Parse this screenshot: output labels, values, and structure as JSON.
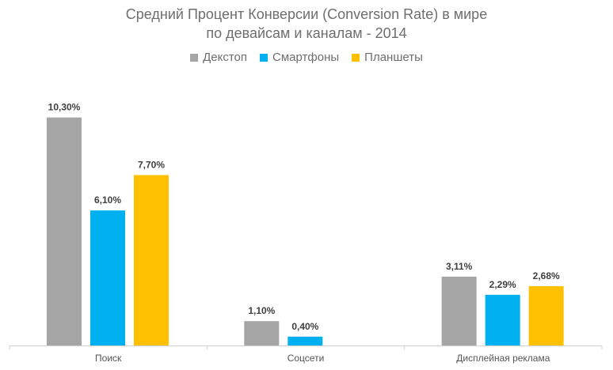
{
  "chart_data": {
    "type": "bar",
    "title_lines": [
      "Средний Процент Конверсии (Conversion Rate) в мире",
      "по девайсам и каналам - 2014"
    ],
    "categories": [
      "Поиск",
      "Соцсети",
      "Дисплейная реклама"
    ],
    "series": [
      {
        "name": "Декстоп",
        "color": "#a5a5a5",
        "values": [
          10.3,
          1.1,
          3.11
        ],
        "labels": [
          "10,30%",
          "1,10%",
          "3,11%"
        ]
      },
      {
        "name": "Смартфоны",
        "color": "#00b0f0",
        "values": [
          6.1,
          0.4,
          2.29
        ],
        "labels": [
          "6,10%",
          "0,40%",
          "2,29%"
        ]
      },
      {
        "name": "Планшеты",
        "color": "#ffc000",
        "values": [
          7.7,
          null,
          2.68
        ],
        "labels": [
          "7,70%",
          "",
          "2,68%"
        ]
      }
    ],
    "legend_position": "top",
    "grid": false
  }
}
